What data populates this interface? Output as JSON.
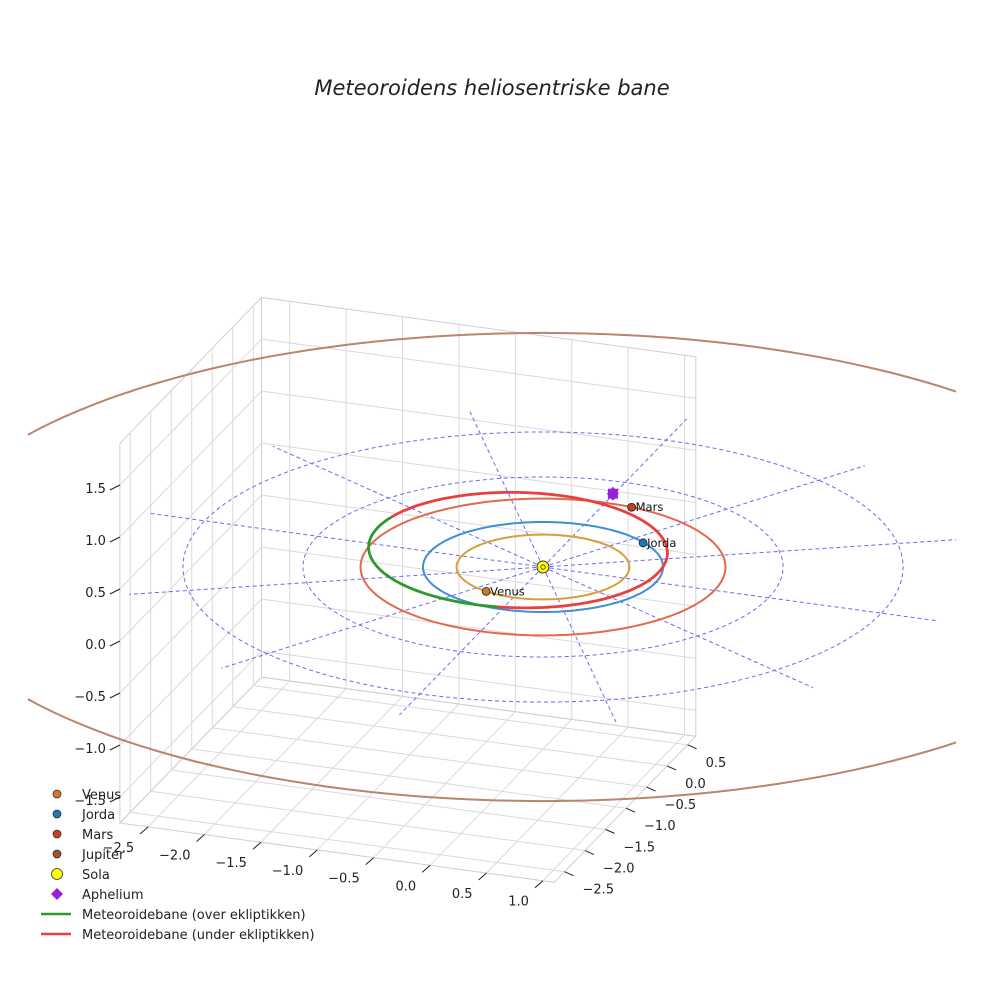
{
  "chart_data": {
    "type": "line3d",
    "title": "Meteoroidens heliosentriske bane",
    "axes": {
      "x": {
        "range": [
          -2.75,
          1.1
        ],
        "ticks": [
          -2.5,
          -2.0,
          -1.5,
          -1.0,
          -0.5,
          0.0,
          0.5,
          1.0
        ],
        "tick_labels": [
          "−2.5",
          "−2.0",
          "−1.5",
          "−1.0",
          "−0.5",
          "0.0",
          "0.5",
          "1.0"
        ]
      },
      "y": {
        "range": [
          -2.75,
          0.7
        ],
        "ticks": [
          -2.5,
          -2.0,
          -1.5,
          -1.0,
          -0.5,
          0.0,
          0.5
        ],
        "tick_labels": [
          "−2.5",
          "−2.0",
          "−1.5",
          "−1.0",
          "−0.5",
          "0.0",
          "0.5"
        ]
      },
      "z": {
        "range": [
          -1.75,
          1.9
        ],
        "ticks": [
          -1.5,
          -1.0,
          -0.5,
          0.0,
          0.5,
          1.0,
          1.5
        ],
        "tick_labels": [
          "−1.5",
          "−1.0",
          "−0.5",
          "0.0",
          "0.5",
          "1.0",
          "1.5"
        ]
      },
      "grid": true
    },
    "orbits": [
      {
        "name": "Venus",
        "radius_au": 0.72,
        "color": "#d4a03f"
      },
      {
        "name": "Jorda",
        "radius_au": 1.0,
        "color": "#3f8fd4"
      },
      {
        "name": "Mars",
        "radius_au": 1.52,
        "color": "#e06a4a"
      },
      {
        "name": "Jupiter",
        "radius_au": 5.2,
        "color": "#b8866a"
      }
    ],
    "ecliptic_reference_circles_au": [
      1,
      2,
      3
    ],
    "planets": [
      {
        "name": "Venus",
        "label": "Venus",
        "x": -0.26,
        "y": -0.67,
        "z": 0,
        "color": "#d2781e"
      },
      {
        "name": "Jorda",
        "label": "Jorda",
        "x": 0.6,
        "y": 0.79,
        "z": 0,
        "color": "#1f77b4"
      },
      {
        "name": "Mars",
        "label": "Mars",
        "x": 0.24,
        "y": 1.5,
        "z": 0,
        "color": "#c8401e"
      }
    ],
    "sun": {
      "name": "Sola",
      "x": 0,
      "y": 0,
      "z": 0,
      "color": "#ffff00"
    },
    "meteoroid_orbit": {
      "a": 1.3,
      "e": 0.33,
      "peri_angle_deg": -41,
      "color_above": "#2e9a2e",
      "color_below": "#e84040",
      "segment_above": [
        -160,
        -52
      ],
      "aphelion": {
        "x": -0.01,
        "y": 1.73,
        "z": 0,
        "color": "#9b1fd4"
      }
    },
    "legend": [
      {
        "label": "Venus",
        "marker": "circle",
        "color": "#d2781e"
      },
      {
        "label": "Jorda",
        "marker": "circle",
        "color": "#1f77b4"
      },
      {
        "label": "Mars",
        "marker": "circle",
        "color": "#c8401e"
      },
      {
        "label": "Jupiter",
        "marker": "circle",
        "color": "#a0522d"
      },
      {
        "label": "Sola",
        "marker": "circle",
        "color": "#ffff00"
      },
      {
        "label": "Aphelium",
        "marker": "diamond",
        "color": "#9b1fd4"
      },
      {
        "label": "Meteoroidebane (over ekliptikken)",
        "marker": "line",
        "color": "#2e9a2e"
      },
      {
        "label": "Meteoroidebane (under ekliptikken)",
        "marker": "line",
        "color": "#e84040"
      }
    ]
  }
}
